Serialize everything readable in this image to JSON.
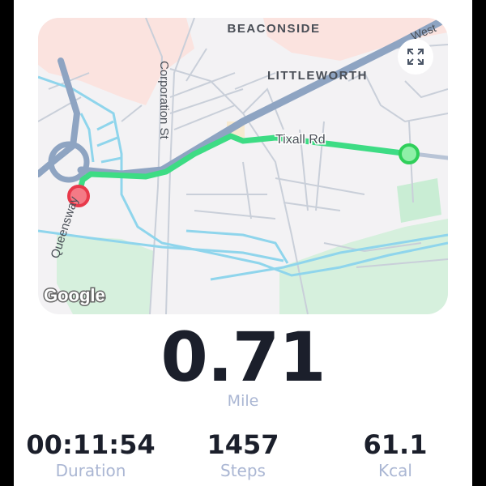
{
  "map": {
    "labels": {
      "beaconside": "BEACONSIDE",
      "littleworth": "LITTLEWORTH",
      "corporation_st": "Corporation St",
      "tixall_rd": "Tixall Rd",
      "queensway": "Queensway",
      "west": "West"
    },
    "attribution": "Google",
    "expand_icon": "expand-icon",
    "start_marker_color": "#e8394a",
    "end_marker_color": "#2fcf5a",
    "route_color": "#3ddc84"
  },
  "summary": {
    "distance": "0.71",
    "distance_unit": "Mile",
    "stats": [
      {
        "value": "00:11:54",
        "label": "Duration"
      },
      {
        "value": "1457",
        "label": "Steps"
      },
      {
        "value": "61.1",
        "label": "Kcal"
      }
    ]
  }
}
